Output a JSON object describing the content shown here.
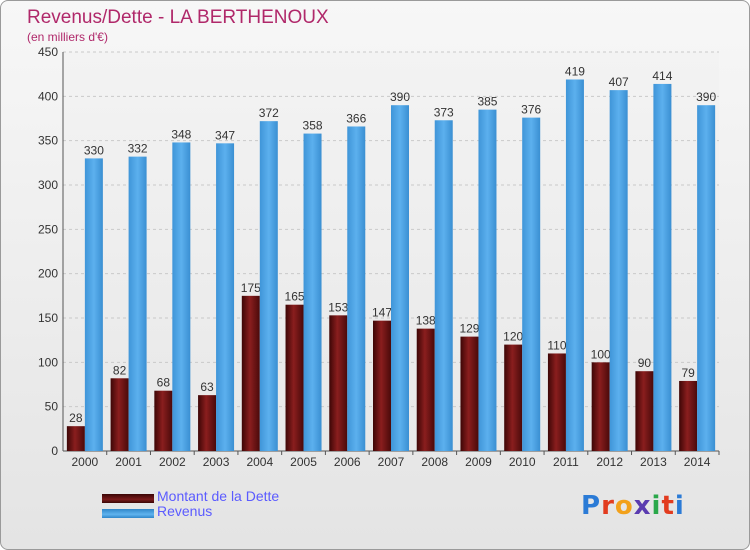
{
  "chart_data": {
    "type": "bar",
    "title": "Revenus/Dette - LA BERTHENOUX",
    "subtitle": "(en milliers d'€)",
    "categories": [
      "2000",
      "2001",
      "2002",
      "2003",
      "2004",
      "2005",
      "2006",
      "2007",
      "2008",
      "2009",
      "2010",
      "2011",
      "2012",
      "2013",
      "2014"
    ],
    "series": [
      {
        "name": "Montant de la Dette",
        "color": "#7a1a1a",
        "values": [
          28,
          82,
          68,
          63,
          175,
          165,
          153,
          147,
          138,
          129,
          120,
          110,
          100,
          90,
          79
        ]
      },
      {
        "name": "Revenus",
        "color": "#4aa3e6",
        "values": [
          330,
          332,
          348,
          347,
          372,
          358,
          366,
          390,
          373,
          385,
          376,
          419,
          407,
          414,
          390
        ]
      }
    ],
    "ylim": [
      0,
      450
    ],
    "yticks": [
      0,
      50,
      100,
      150,
      200,
      250,
      300,
      350,
      400,
      450
    ],
    "grid": true,
    "legend_position": "bottom-left"
  },
  "logo": {
    "letters": [
      "P",
      "r",
      "o",
      "x",
      "i",
      "t",
      "i"
    ],
    "colors": [
      "#2b7bd6",
      "#e23c1f",
      "#f2a11b",
      "#5a3bb0",
      "#2aa84a",
      "#e23c1f",
      "#2b7bd6"
    ]
  }
}
